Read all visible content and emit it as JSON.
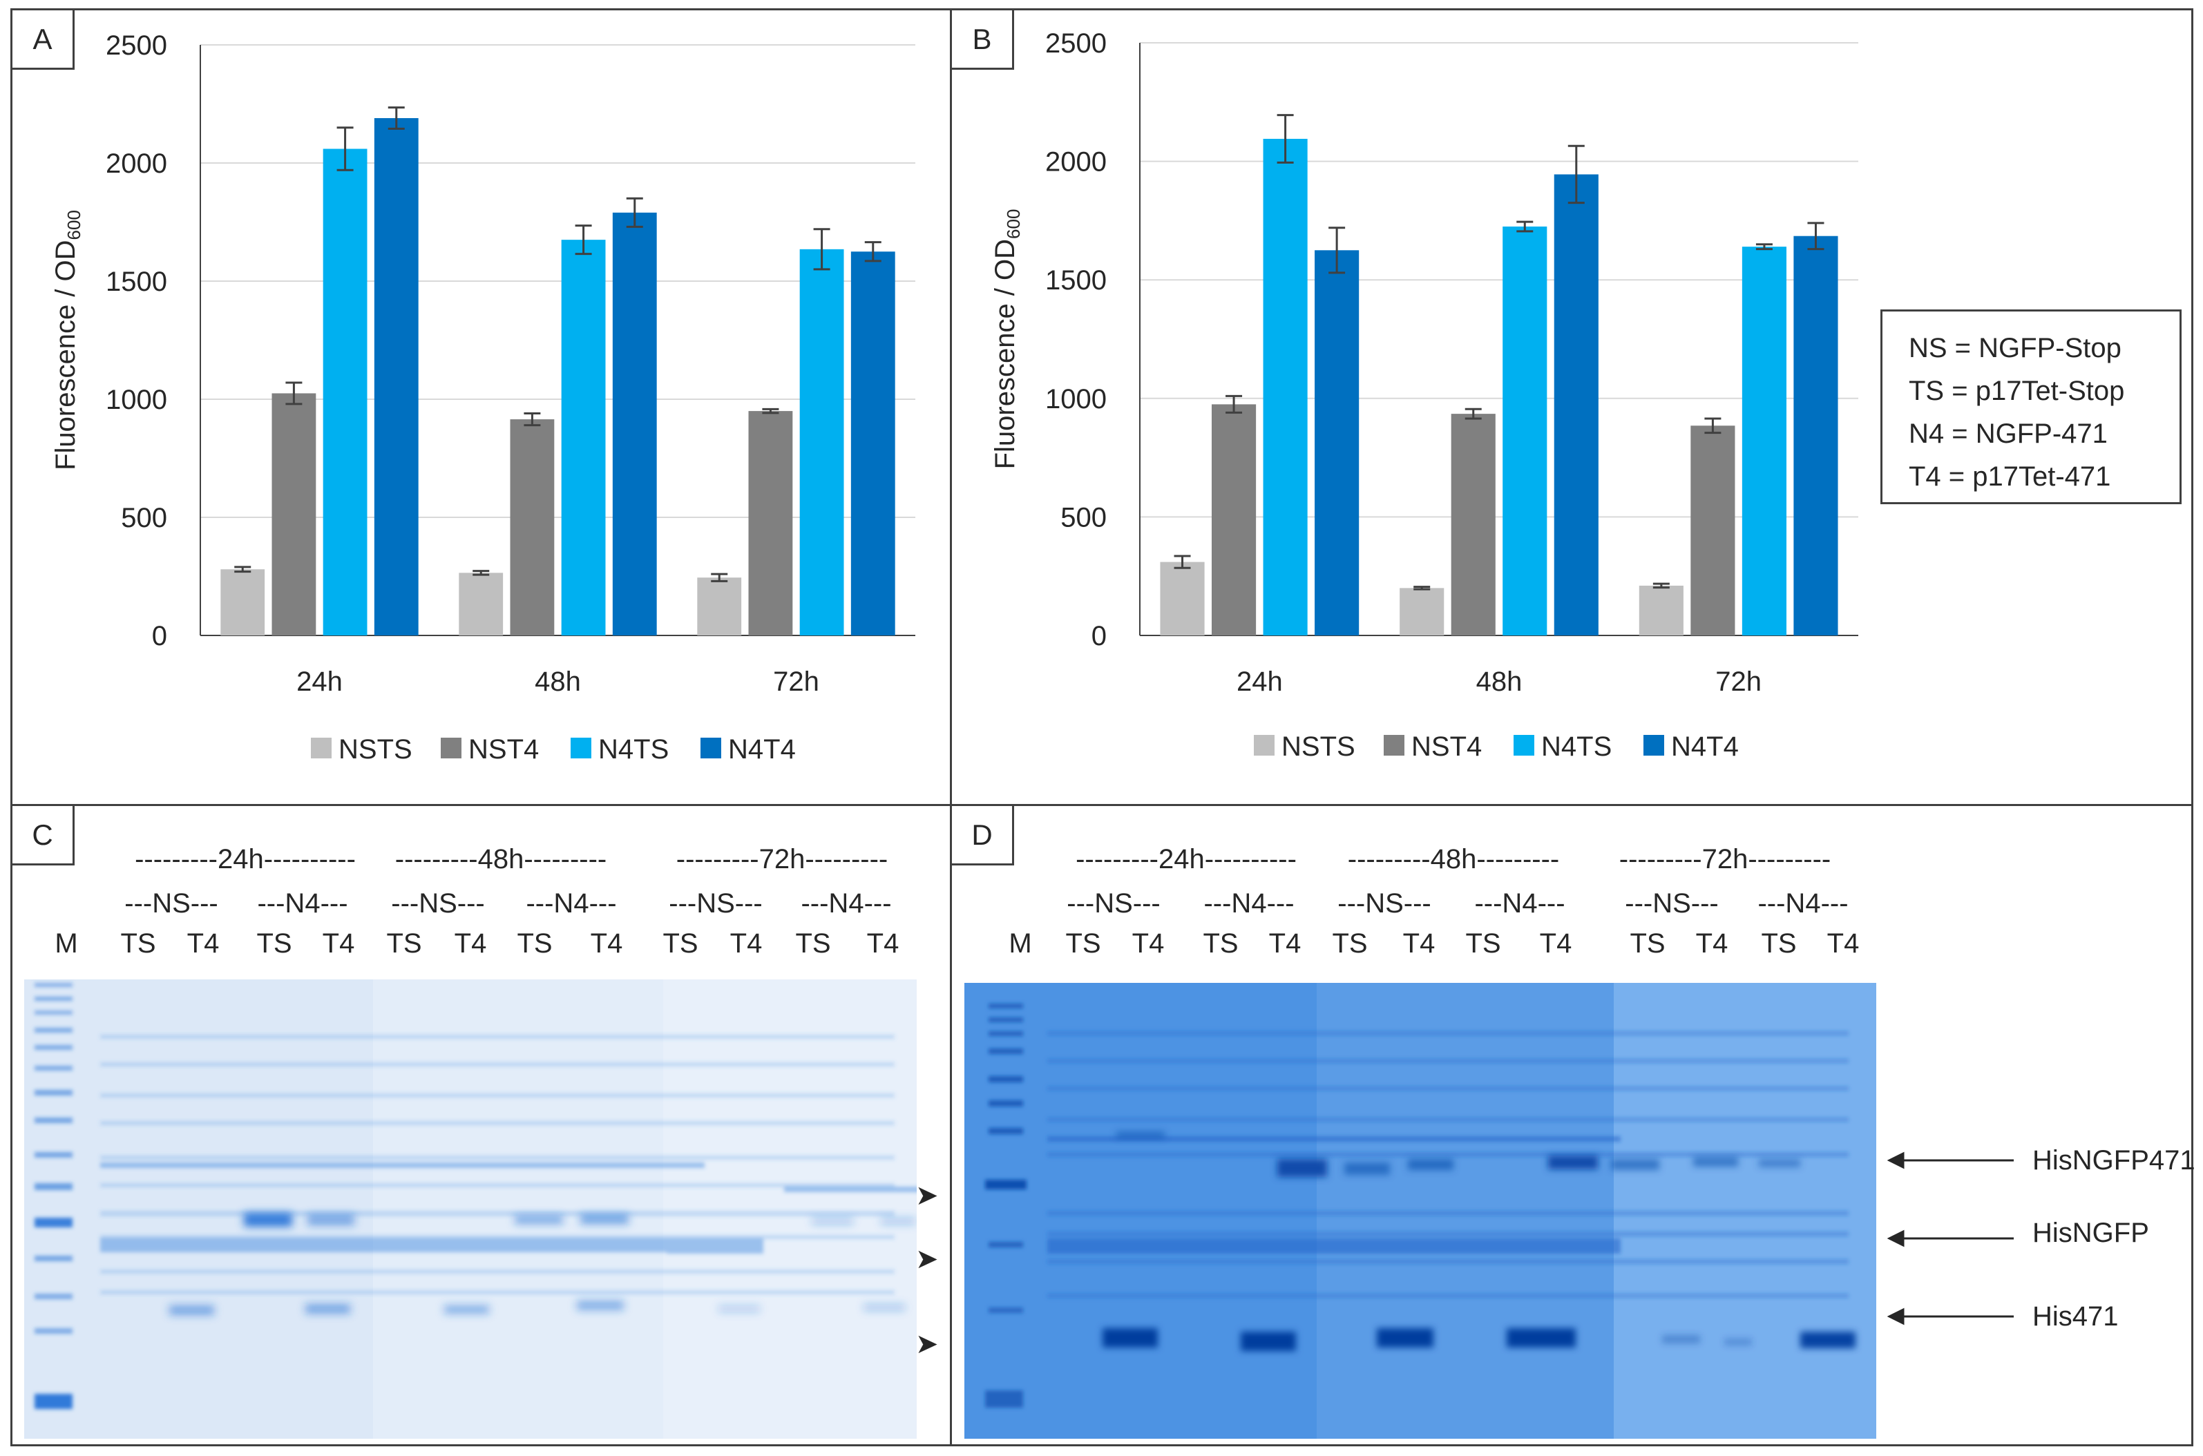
{
  "chart_data": [
    {
      "type": "bar",
      "panel": "A",
      "ylabel": "Fluorescence / OD",
      "ylabel_sub": "600",
      "ylim": [
        0,
        2500
      ],
      "yticks": [
        0,
        500,
        1000,
        1500,
        2000,
        2500
      ],
      "categories": [
        "24h",
        "48h",
        "72h"
      ],
      "series": [
        {
          "name": "NSTS",
          "color": "#bfbfbf",
          "values": [
            280,
            265,
            245
          ],
          "errors": [
            10,
            8,
            15
          ]
        },
        {
          "name": "NST4",
          "color": "#808080",
          "values": [
            1025,
            915,
            950
          ],
          "errors": [
            45,
            25,
            8
          ]
        },
        {
          "name": "N4TS",
          "color": "#00b0f0",
          "values": [
            2060,
            1675,
            1635
          ],
          "errors": [
            90,
            60,
            85
          ]
        },
        {
          "name": "N4T4",
          "color": "#0070c0",
          "values": [
            2190,
            1790,
            1625
          ],
          "errors": [
            45,
            60,
            40
          ]
        }
      ]
    },
    {
      "type": "bar",
      "panel": "B",
      "ylabel": "Fluorescence / OD",
      "ylabel_sub": "600",
      "ylim": [
        0,
        2500
      ],
      "yticks": [
        0,
        500,
        1000,
        1500,
        2000,
        2500
      ],
      "categories": [
        "24h",
        "48h",
        "72h"
      ],
      "series": [
        {
          "name": "NSTS",
          "color": "#bfbfbf",
          "values": [
            310,
            200,
            210
          ],
          "errors": [
            25,
            5,
            8
          ]
        },
        {
          "name": "NST4",
          "color": "#808080",
          "values": [
            975,
            935,
            885
          ],
          "errors": [
            35,
            20,
            30
          ]
        },
        {
          "name": "N4TS",
          "color": "#00b0f0",
          "values": [
            2095,
            1725,
            1640
          ],
          "errors": [
            100,
            20,
            10
          ]
        },
        {
          "name": "N4T4",
          "color": "#0070c0",
          "values": [
            1625,
            1945,
            1685
          ],
          "errors": [
            95,
            120,
            55
          ]
        }
      ]
    }
  ],
  "panels": {
    "a": "A",
    "b": "B",
    "c": "C",
    "d": "D"
  },
  "legend_key": [
    "NS = NGFP-Stop",
    "TS = p17Tet-Stop",
    "N4 = NGFP-471",
    "T4 = p17Tet-471"
  ],
  "gel_c": {
    "time_labels": [
      "---------24h----------",
      "---------48h---------",
      "---------72h---------"
    ],
    "group_labels": [
      "---NS---",
      "---N4---",
      "---NS---",
      "---N4---",
      "---NS---",
      "---N4---"
    ],
    "lane_labels": [
      "M",
      "TS",
      "T4",
      "TS",
      "T4",
      "TS",
      "T4",
      "TS",
      "T4",
      "TS",
      "T4",
      "TS",
      "T4"
    ]
  },
  "gel_d": {
    "time_labels": [
      "---------24h----------",
      "---------48h---------",
      "---------72h---------"
    ],
    "group_labels": [
      "---NS---",
      "---N4---",
      "---NS---",
      "---N4---",
      "---NS---",
      "---N4---"
    ],
    "lane_labels": [
      "M",
      "TS",
      "T4",
      "TS",
      "T4",
      "TS",
      "T4",
      "TS",
      "T4",
      "TS",
      "T4",
      "TS",
      "T4"
    ],
    "band_labels": [
      "HisNGFP471",
      "HisNGFP",
      "His471"
    ]
  },
  "colors": {
    "gel_c_bg": "#dbe7f6",
    "gel_d_bg": "#5b9ce6",
    "stain": "#1f6fd6"
  }
}
